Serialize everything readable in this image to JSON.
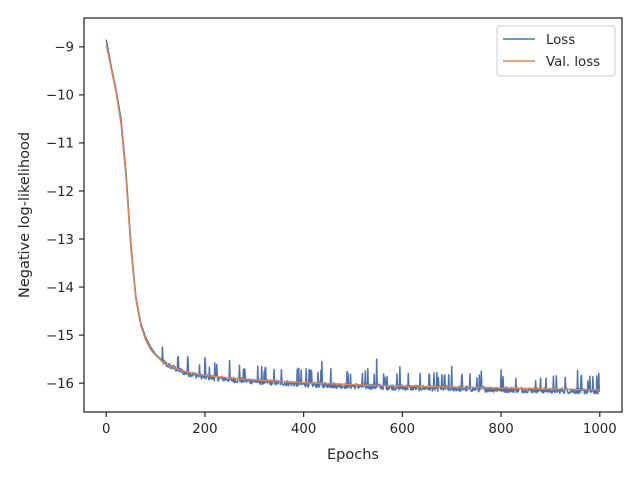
{
  "chart_data": {
    "type": "line",
    "title": "",
    "xlabel": "Epochs",
    "ylabel": "Negative log-likelihood",
    "xlim": [
      -45,
      1045
    ],
    "ylim": [
      -16.6,
      -8.4
    ],
    "xticks": [
      0,
      200,
      400,
      600,
      800,
      1000
    ],
    "xtick_labels": [
      "0",
      "200",
      "400",
      "600",
      "800",
      "1000"
    ],
    "yticks": [
      -9,
      -10,
      -11,
      -12,
      -13,
      -14,
      -15,
      -16
    ],
    "ytick_labels": [
      "−9",
      "−10",
      "−11",
      "−12",
      "−13",
      "−14",
      "−15",
      "−16"
    ],
    "grid": false,
    "legend_position": "top-right",
    "series": [
      {
        "name": "Loss",
        "color": "#4c72b0",
        "x": [
          0,
          10,
          20,
          30,
          40,
          50,
          60,
          70,
          80,
          90,
          100,
          120,
          140,
          160,
          180,
          200,
          250,
          300,
          350,
          400,
          450,
          500,
          550,
          600,
          650,
          700,
          750,
          800,
          850,
          900,
          950,
          1000
        ],
        "values": [
          -8.85,
          -9.4,
          -9.9,
          -10.5,
          -11.6,
          -13.1,
          -14.2,
          -14.75,
          -15.05,
          -15.25,
          -15.4,
          -15.6,
          -15.7,
          -15.78,
          -15.83,
          -15.87,
          -15.92,
          -15.96,
          -15.99,
          -16.02,
          -16.04,
          -16.06,
          -16.07,
          -16.09,
          -16.1,
          -16.11,
          -16.12,
          -16.13,
          -16.14,
          -16.15,
          -16.16,
          -16.17
        ],
        "noise_spikes": [
          {
            "x": 145,
            "y": -15.45
          },
          {
            "x": 165,
            "y": -15.45
          },
          {
            "x": 200,
            "y": -15.47
          },
          {
            "x": 220,
            "y": -15.58
          },
          {
            "x": 250,
            "y": -15.53
          },
          {
            "x": 270,
            "y": -15.63
          },
          {
            "x": 320,
            "y": -15.76
          },
          {
            "x": 355,
            "y": -15.72
          },
          {
            "x": 390,
            "y": -15.69
          },
          {
            "x": 405,
            "y": -15.7
          },
          {
            "x": 437,
            "y": -15.55
          },
          {
            "x": 455,
            "y": -15.7
          },
          {
            "x": 490,
            "y": -15.8
          },
          {
            "x": 530,
            "y": -15.7
          },
          {
            "x": 548,
            "y": -15.5
          },
          {
            "x": 565,
            "y": -15.88
          },
          {
            "x": 595,
            "y": -15.66
          },
          {
            "x": 612,
            "y": -15.8
          },
          {
            "x": 655,
            "y": -15.82
          },
          {
            "x": 685,
            "y": -15.85
          },
          {
            "x": 700,
            "y": -15.65
          },
          {
            "x": 720,
            "y": -15.85
          },
          {
            "x": 760,
            "y": -15.75
          },
          {
            "x": 800,
            "y": -15.72
          },
          {
            "x": 830,
            "y": -15.9
          },
          {
            "x": 870,
            "y": -15.95
          },
          {
            "x": 930,
            "y": -15.88
          },
          {
            "x": 955,
            "y": -15.73
          },
          {
            "x": 998,
            "y": -15.8
          }
        ]
      },
      {
        "name": "Val. loss",
        "color": "#dd8452",
        "x": [
          0,
          10,
          20,
          30,
          40,
          50,
          60,
          70,
          80,
          90,
          100,
          120,
          140,
          160,
          180,
          200,
          250,
          300,
          350,
          400,
          450,
          500,
          550,
          600,
          650,
          700,
          750,
          800,
          850,
          900,
          950,
          1000
        ],
        "values": [
          -8.95,
          -9.45,
          -9.95,
          -10.6,
          -11.7,
          -13.2,
          -14.25,
          -14.8,
          -15.1,
          -15.3,
          -15.42,
          -15.6,
          -15.69,
          -15.76,
          -15.8,
          -15.84,
          -15.89,
          -15.93,
          -15.96,
          -15.99,
          -16.01,
          -16.03,
          -16.05,
          -16.06,
          -16.07,
          -16.08,
          -16.09,
          -16.1,
          -16.11,
          -16.12,
          -16.13,
          -16.14
        ]
      }
    ]
  }
}
